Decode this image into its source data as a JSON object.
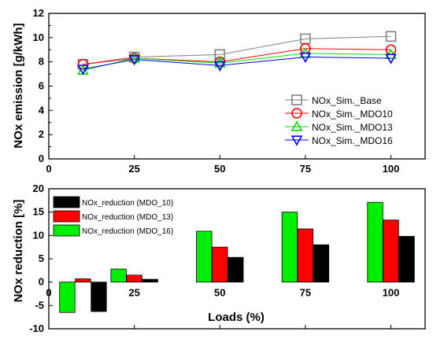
{
  "chart_data": [
    {
      "type": "line",
      "xlabel": "",
      "ylabel": "NOx emission [g/kWh]",
      "x": [
        10,
        25,
        50,
        75,
        100
      ],
      "xlim": [
        0,
        110
      ],
      "ylim": [
        0,
        12
      ],
      "xticks": [
        "0",
        "25",
        "50",
        "75",
        "100"
      ],
      "yticks": [
        "0",
        "2",
        "4",
        "6",
        "8",
        "10",
        "12"
      ],
      "legend_position": "bottom-right",
      "grid": false,
      "series": [
        {
          "name": "NOx_Sim._Base",
          "color": "#808080",
          "marker": "square",
          "values": [
            7.8,
            8.4,
            8.6,
            9.9,
            10.1
          ]
        },
        {
          "name": "NOx_Sim._MDO10",
          "color": "#ff0000",
          "marker": "circle",
          "values": [
            7.8,
            8.3,
            8.0,
            9.1,
            9.0
          ]
        },
        {
          "name": "NOx_Sim._MDO13",
          "color": "#00dd00",
          "marker": "triangle-up",
          "values": [
            7.3,
            8.3,
            7.9,
            8.7,
            8.6
          ]
        },
        {
          "name": "NOx_Sim._MDO16",
          "color": "#0000ff",
          "marker": "triangle-down",
          "values": [
            7.4,
            8.2,
            7.7,
            8.4,
            8.3
          ]
        }
      ]
    },
    {
      "type": "bar",
      "xlabel": "Loads (%)",
      "ylabel": "NOx reduction [%]",
      "categories": [
        "10",
        "25",
        "50",
        "75",
        "100"
      ],
      "xlim": [
        0,
        110
      ],
      "ylim": [
        -10,
        20
      ],
      "xticks": [
        "0",
        "25",
        "50",
        "75",
        "100"
      ],
      "yticks": [
        "-10",
        "-5",
        "0",
        "5",
        "10",
        "15",
        "20"
      ],
      "legend_position": "top-left",
      "grid": false,
      "series": [
        {
          "name": "NOx_reduction (MDO_10)",
          "color": "#000000",
          "values": [
            -6.3,
            0.6,
            5.3,
            8.0,
            9.8
          ]
        },
        {
          "name": "NOx_reduction (MDO_13)",
          "color": "#ff0000",
          "values": [
            0.7,
            1.5,
            7.5,
            11.4,
            13.3
          ]
        },
        {
          "name": "NOx_reduction (MDO_16)",
          "color": "#00ee00",
          "values": [
            -6.5,
            2.8,
            10.9,
            15.0,
            17.1
          ]
        }
      ]
    }
  ]
}
